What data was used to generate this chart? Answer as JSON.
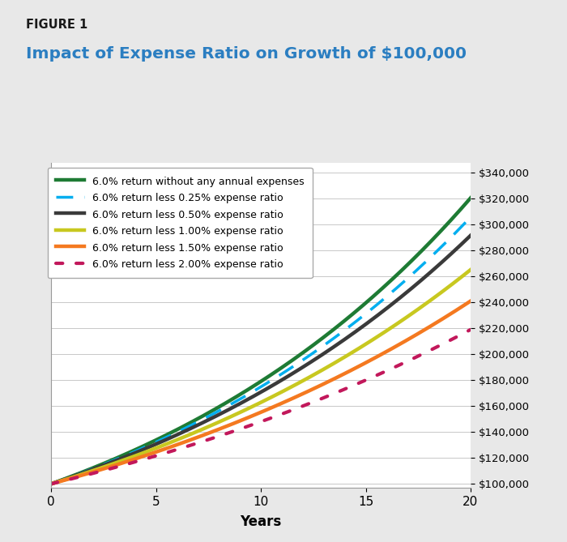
{
  "figure_label": "FIGURE 1",
  "title": "Impact of Expense Ratio on Growth of $100,000",
  "title_color": "#2B7EC1",
  "figure_label_color": "#1A1A1A",
  "initial": 100000,
  "years": 20,
  "series": [
    {
      "label": "6.0% return without any annual expenses",
      "rate": 0.06,
      "color": "#1E7B34",
      "linestyle": "solid",
      "linewidth": 3.2,
      "dash": null
    },
    {
      "label": "6.0% return less 0.25% expense ratio",
      "rate": 0.0575,
      "color": "#00AEEF",
      "linestyle": "dashed",
      "linewidth": 2.5,
      "dash": [
        6,
        4
      ]
    },
    {
      "label": "6.0% return less 0.50% expense ratio",
      "rate": 0.055,
      "color": "#3A3A3A",
      "linestyle": "solid",
      "linewidth": 3.2,
      "dash": null
    },
    {
      "label": "6.0% return less 1.00% expense ratio",
      "rate": 0.05,
      "color": "#C8C820",
      "linestyle": "solid",
      "linewidth": 3.2,
      "dash": null
    },
    {
      "label": "6.0% return less 1.50% expense ratio",
      "rate": 0.045,
      "color": "#F47920",
      "linestyle": "solid",
      "linewidth": 3.2,
      "dash": null
    },
    {
      "label": "6.0% return less 2.00% expense ratio",
      "rate": 0.04,
      "color": "#C2185B",
      "linestyle": "dotted",
      "linewidth": 3.0,
      "dash": [
        2,
        4
      ]
    }
  ],
  "xlabel": "Years",
  "ylabel_ticks": [
    100000,
    120000,
    140000,
    160000,
    180000,
    200000,
    220000,
    240000,
    260000,
    280000,
    300000,
    320000,
    340000
  ],
  "xlim": [
    0,
    20
  ],
  "ylim": [
    97000,
    348000
  ],
  "outer_bg": "#E8E8E8",
  "plot_bg_color": "#FFFFFF",
  "grid_color": "#C8C8C8"
}
